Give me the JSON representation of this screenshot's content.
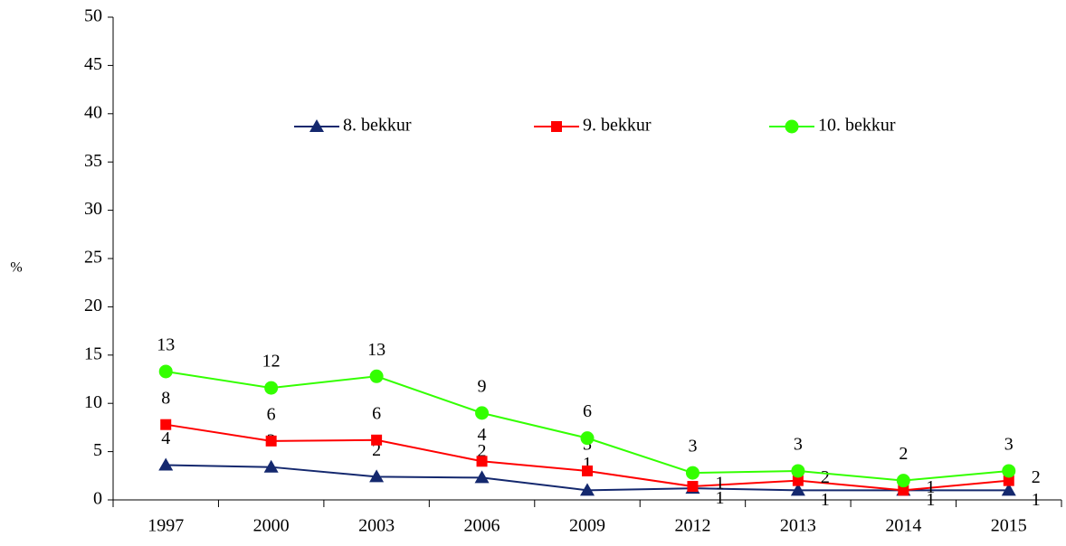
{
  "chart_data": {
    "type": "line",
    "categories": [
      "1997",
      "2000",
      "2003",
      "2006",
      "2009",
      "2012",
      "2013",
      "2014",
      "2015"
    ],
    "y_label": "%",
    "ylim": [
      0,
      50
    ],
    "yticks": [
      0,
      5,
      10,
      15,
      20,
      25,
      30,
      35,
      40,
      45,
      50
    ],
    "legend": "top",
    "series": [
      {
        "name": "8. bekkur",
        "color": "#14286e",
        "marker": "triangle",
        "values": [
          3.6,
          3.4,
          2.4,
          2.3,
          1.0,
          1.2,
          1.0,
          1.0,
          1.0
        ],
        "value_labels": [
          "4",
          "3",
          "2",
          "2",
          "1",
          "1",
          "1",
          "1",
          "1"
        ]
      },
      {
        "name": "9. bekkur",
        "color": "#ff0000",
        "marker": "square",
        "values": [
          7.8,
          6.1,
          6.2,
          4.0,
          3.0,
          1.4,
          2.0,
          1.0,
          2.0
        ],
        "value_labels": [
          "8",
          "6",
          "6",
          "4",
          "3",
          "1",
          "2",
          "1",
          "2"
        ]
      },
      {
        "name": "10. bekkur",
        "color": "#33ff00",
        "marker": "circle",
        "values": [
          13.3,
          11.6,
          12.8,
          9.0,
          6.4,
          2.8,
          3.0,
          2.0,
          3.0
        ],
        "value_labels": [
          "13",
          "12",
          "13",
          "9",
          "6",
          "3",
          "3",
          "2",
          "3"
        ]
      }
    ]
  }
}
